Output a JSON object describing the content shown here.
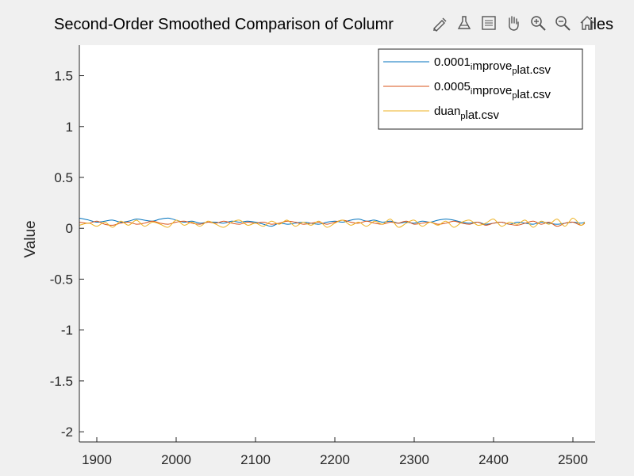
{
  "chart_data": {
    "type": "line",
    "title": "Second-Order Smoothed Comparison of Columr",
    "title_tail": "iles",
    "xlabel": "",
    "ylabel": "Value",
    "xlim": [
      1878,
      2528
    ],
    "ylim": [
      -2.1,
      1.8
    ],
    "xticks": [
      1900,
      2000,
      2100,
      2200,
      2300,
      2400,
      2500
    ],
    "yticks": [
      1.5,
      1,
      0.5,
      0,
      -0.5,
      -1,
      -1.5,
      -2
    ],
    "xtick_labels": [
      "1900",
      "2000",
      "2100",
      "2200",
      "2300",
      "2400",
      "2500"
    ],
    "ytick_labels": [
      "1.5",
      "1",
      "0.5",
      "0",
      "-0.5",
      "-1",
      "-1.5",
      "-2"
    ],
    "grid": false,
    "legend_position": "top-right",
    "x": [
      1878,
      1890,
      1900,
      1910,
      1920,
      1930,
      1940,
      1950,
      1960,
      1970,
      1980,
      1990,
      2000,
      2010,
      2020,
      2030,
      2040,
      2050,
      2060,
      2070,
      2080,
      2090,
      2100,
      2110,
      2120,
      2130,
      2140,
      2150,
      2160,
      2170,
      2180,
      2190,
      2200,
      2210,
      2220,
      2230,
      2240,
      2250,
      2260,
      2270,
      2280,
      2290,
      2300,
      2310,
      2320,
      2330,
      2340,
      2350,
      2360,
      2370,
      2380,
      2390,
      2400,
      2410,
      2420,
      2430,
      2440,
      2450,
      2460,
      2470,
      2480,
      2490,
      2500,
      2510,
      2515
    ],
    "series": [
      {
        "name": "0.0001_improve_plat.csv",
        "legend_main": [
          "0.0001",
          "mprove",
          "lat.csv"
        ],
        "legend_sub": [
          "i",
          "p"
        ],
        "color": "#0072BD",
        "values": [
          0.1,
          0.08,
          0.06,
          0.07,
          0.08,
          0.06,
          0.07,
          0.09,
          0.08,
          0.07,
          0.09,
          0.1,
          0.08,
          0.06,
          0.07,
          0.05,
          0.06,
          0.06,
          0.05,
          0.07,
          0.06,
          0.07,
          0.06,
          0.04,
          0.02,
          0.05,
          0.04,
          0.05,
          0.06,
          0.05,
          0.04,
          0.06,
          0.07,
          0.06,
          0.08,
          0.09,
          0.07,
          0.08,
          0.06,
          0.07,
          0.05,
          0.06,
          0.05,
          0.07,
          0.06,
          0.08,
          0.09,
          0.08,
          0.06,
          0.05,
          0.06,
          0.04,
          0.05,
          0.06,
          0.04,
          0.06,
          0.05,
          0.04,
          0.06,
          0.05,
          0.04,
          0.05,
          0.06,
          0.05,
          0.06
        ]
      },
      {
        "name": "0.0005_improve_plat.csv",
        "legend_main": [
          "0.0005",
          "mprove",
          "lat.csv"
        ],
        "legend_sub": [
          "i",
          "p"
        ],
        "color": "#D95319",
        "values": [
          0.06,
          0.05,
          0.07,
          0.04,
          0.03,
          0.05,
          0.06,
          0.04,
          0.05,
          0.07,
          0.05,
          0.04,
          0.06,
          0.07,
          0.05,
          0.04,
          0.06,
          0.05,
          0.07,
          0.05,
          0.04,
          0.06,
          0.05,
          0.06,
          0.04,
          0.05,
          0.07,
          0.06,
          0.04,
          0.05,
          0.06,
          0.04,
          0.06,
          0.08,
          0.06,
          0.05,
          0.07,
          0.05,
          0.04,
          0.06,
          0.05,
          0.07,
          0.04,
          0.05,
          0.06,
          0.04,
          0.05,
          0.07,
          0.05,
          0.04,
          0.06,
          0.03,
          0.05,
          0.06,
          0.04,
          0.03,
          0.05,
          0.07,
          0.04,
          0.06,
          0.02,
          0.05,
          0.06,
          0.03,
          0.05
        ]
      },
      {
        "name": "duan_plat.csv",
        "legend_main": [
          "duan",
          "lat.csv"
        ],
        "legend_sub": [
          "p"
        ],
        "color": "#EDB120",
        "values": [
          0.03,
          0.05,
          0.02,
          0.06,
          0.01,
          0.07,
          0.03,
          0.08,
          0.02,
          0.06,
          0.04,
          0.01,
          0.08,
          0.03,
          0.06,
          0.02,
          0.07,
          0.04,
          0.01,
          0.06,
          0.08,
          0.03,
          0.05,
          0.02,
          0.07,
          0.04,
          0.08,
          0.02,
          0.06,
          0.03,
          0.07,
          0.01,
          0.05,
          0.08,
          0.03,
          0.06,
          0.02,
          0.07,
          0.04,
          0.09,
          0.01,
          0.05,
          0.08,
          0.02,
          0.06,
          0.03,
          0.07,
          0.01,
          0.06,
          0.08,
          0.03,
          0.05,
          0.09,
          0.02,
          0.06,
          0.04,
          0.08,
          0.01,
          0.07,
          0.04,
          0.09,
          0.02,
          0.1,
          0.03,
          0.06
        ]
      }
    ]
  },
  "toolbar": {
    "icons": [
      "brush-edit-icon",
      "data-tips-icon",
      "legend-icon",
      "pan-hand-icon",
      "zoom-in-icon",
      "zoom-out-icon",
      "home-icon"
    ]
  }
}
